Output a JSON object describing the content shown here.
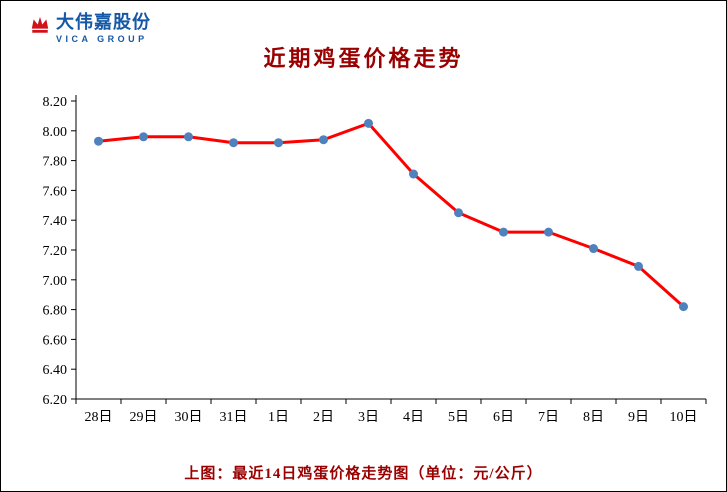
{
  "header": {
    "logo": {
      "name": "大伟嘉股份",
      "subtitle": "VICA GROUP",
      "icon": "crown-icon",
      "icon_color": "#d0121b",
      "text_color": "#1558a6"
    },
    "title": "近期鸡蛋价格走势"
  },
  "caption": "上图：最近14日鸡蛋价格走势图（单位：元/公斤）",
  "colors": {
    "title": "#990000",
    "caption": "#990000",
    "axis": "#000000",
    "line": "#ff0000",
    "marker": "#4f81bd"
  },
  "chart_data": {
    "type": "line",
    "title": "近期鸡蛋价格走势",
    "categories": [
      "28日",
      "29日",
      "30日",
      "31日",
      "1日",
      "2日",
      "3日",
      "4日",
      "5日",
      "6日",
      "7日",
      "8日",
      "9日",
      "10日"
    ],
    "values": [
      7.93,
      7.96,
      7.96,
      7.92,
      7.92,
      7.94,
      8.05,
      7.71,
      7.45,
      7.32,
      7.32,
      7.21,
      7.09,
      6.82
    ],
    "xlabel": "",
    "ylabel": "",
    "ylim": [
      6.2,
      8.2
    ],
    "ytick_step": 0.2,
    "grid": false,
    "legend": "none",
    "line_color": "#ff0000",
    "marker_color": "#4f81bd"
  }
}
